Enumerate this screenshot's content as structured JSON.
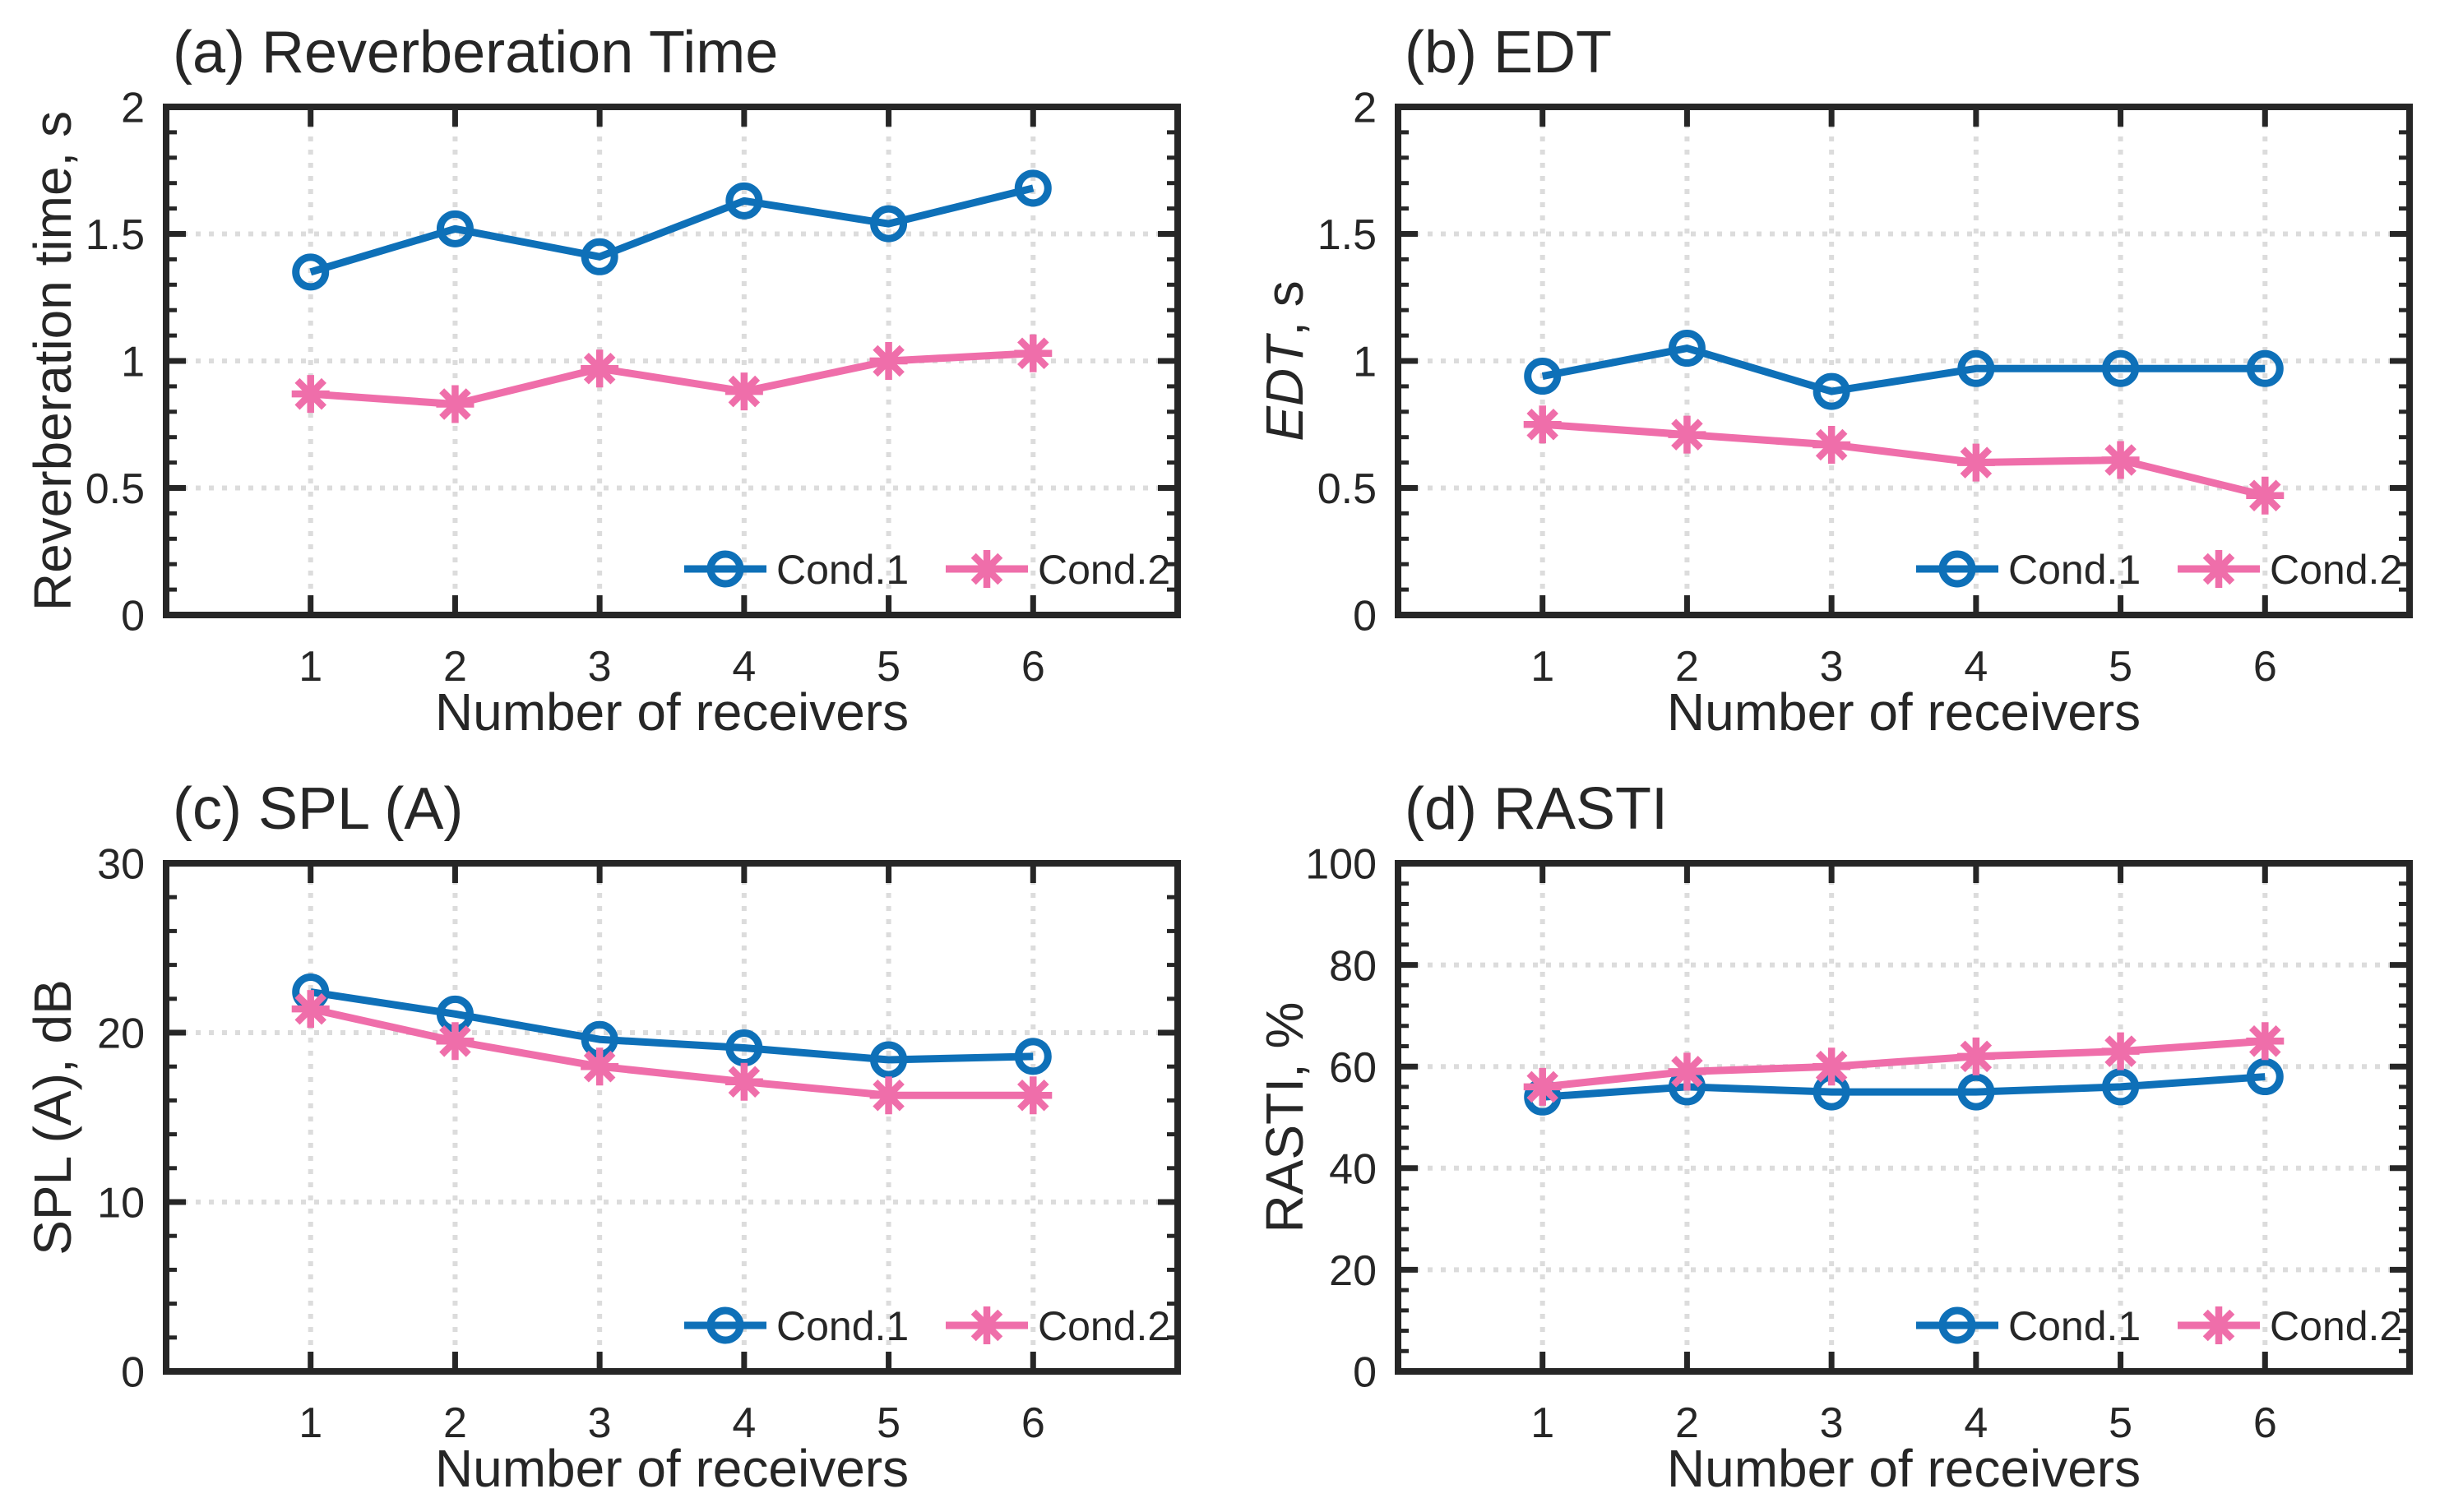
{
  "figure": {
    "background": "#ffffff",
    "text_color": "#262626",
    "axis_color": "#262626",
    "grid_color": "#dcdcdc",
    "colors": {
      "cond1": "#0e70b8",
      "cond2": "#ef6eaa"
    }
  },
  "chart_data": [
    {
      "id": "a",
      "type": "line",
      "title": "(a) Reverberation Time",
      "xlabel": "Number of receivers",
      "ylabel_segments": [
        {
          "text": "Reverberation time, s",
          "italic": false
        }
      ],
      "x": [
        1,
        2,
        3,
        4,
        5,
        6
      ],
      "xtick_labels": [
        "1",
        "2",
        "3",
        "4",
        "5",
        "6"
      ],
      "xlim": [
        0,
        7
      ],
      "ylim": [
        0,
        2
      ],
      "yticks": [
        0,
        0.5,
        1,
        1.5,
        2
      ],
      "ytick_labels": [
        "0",
        "0.5",
        "1",
        "1.5",
        "2"
      ],
      "y_minor_step": 0.1,
      "grid": true,
      "legend": {
        "position": "bottom-right",
        "entries": [
          "Cond.1",
          "Cond.2"
        ]
      },
      "series": [
        {
          "name": "Cond.1",
          "color_key": "cond1",
          "marker": "circle",
          "values": [
            1.35,
            1.52,
            1.41,
            1.63,
            1.54,
            1.68
          ]
        },
        {
          "name": "Cond.2",
          "color_key": "cond2",
          "marker": "asterisk",
          "values": [
            0.87,
            0.83,
            0.97,
            0.88,
            1.0,
            1.03
          ]
        }
      ]
    },
    {
      "id": "b",
      "type": "line",
      "title": "(b) EDT",
      "xlabel": "Number of receivers",
      "ylabel_segments": [
        {
          "text": "EDT",
          "italic": true
        },
        {
          "text": ", s",
          "italic": false
        }
      ],
      "x": [
        1,
        2,
        3,
        4,
        5,
        6
      ],
      "xtick_labels": [
        "1",
        "2",
        "3",
        "4",
        "5",
        "6"
      ],
      "xlim": [
        0,
        7
      ],
      "ylim": [
        0,
        2
      ],
      "yticks": [
        0,
        0.5,
        1,
        1.5,
        2
      ],
      "ytick_labels": [
        "0",
        "0.5",
        "1",
        "1.5",
        "2"
      ],
      "y_minor_step": 0.1,
      "grid": true,
      "legend": {
        "position": "bottom-right",
        "entries": [
          "Cond.1",
          "Cond.2"
        ]
      },
      "series": [
        {
          "name": "Cond.1",
          "color_key": "cond1",
          "marker": "circle",
          "values": [
            0.94,
            1.05,
            0.88,
            0.97,
            0.97,
            0.97
          ]
        },
        {
          "name": "Cond.2",
          "color_key": "cond2",
          "marker": "asterisk",
          "values": [
            0.75,
            0.71,
            0.67,
            0.6,
            0.61,
            0.47
          ]
        }
      ]
    },
    {
      "id": "c",
      "type": "line",
      "title": "(c) SPL (A)",
      "xlabel": "Number of receivers",
      "ylabel_segments": [
        {
          "text": "SPL (A),  dB",
          "italic": false
        }
      ],
      "x": [
        1,
        2,
        3,
        4,
        5,
        6
      ],
      "xtick_labels": [
        "1",
        "2",
        "3",
        "4",
        "5",
        "6"
      ],
      "xlim": [
        0,
        7
      ],
      "ylim": [
        0,
        30
      ],
      "yticks": [
        0,
        10,
        20,
        30
      ],
      "ytick_labels": [
        "0",
        "10",
        "20",
        "30"
      ],
      "y_minor_step": 2,
      "grid": true,
      "legend": {
        "position": "bottom-right",
        "entries": [
          "Cond.1",
          "Cond.2"
        ]
      },
      "series": [
        {
          "name": "Cond.1",
          "color_key": "cond1",
          "marker": "circle",
          "values": [
            22.4,
            21.1,
            19.6,
            19.1,
            18.4,
            18.6
          ]
        },
        {
          "name": "Cond.2",
          "color_key": "cond2",
          "marker": "asterisk",
          "values": [
            21.4,
            19.5,
            18.0,
            17.1,
            16.3,
            16.3
          ]
        }
      ]
    },
    {
      "id": "d",
      "type": "line",
      "title": "(d) RASTI",
      "xlabel": "Number of receivers",
      "ylabel_segments": [
        {
          "text": "RASTI, %",
          "italic": false
        }
      ],
      "x": [
        1,
        2,
        3,
        4,
        5,
        6
      ],
      "xtick_labels": [
        "1",
        "2",
        "3",
        "4",
        "5",
        "6"
      ],
      "xlim": [
        0,
        7
      ],
      "ylim": [
        0,
        100
      ],
      "yticks": [
        0,
        20,
        40,
        60,
        80,
        100
      ],
      "ytick_labels": [
        "0",
        "20",
        "40",
        "60",
        "80",
        "100"
      ],
      "y_minor_step": 4,
      "grid": true,
      "legend": {
        "position": "bottom-right",
        "entries": [
          "Cond.1",
          "Cond.2"
        ]
      },
      "series": [
        {
          "name": "Cond.1",
          "color_key": "cond1",
          "marker": "circle",
          "values": [
            54,
            56,
            55,
            55,
            56,
            58
          ]
        },
        {
          "name": "Cond.2",
          "color_key": "cond2",
          "marker": "asterisk",
          "values": [
            56,
            59,
            60,
            62,
            63,
            65
          ]
        }
      ]
    }
  ]
}
